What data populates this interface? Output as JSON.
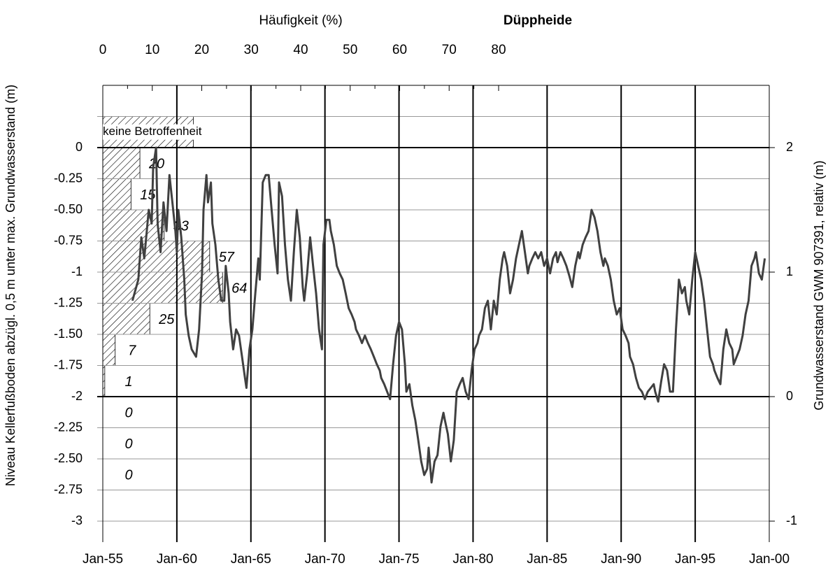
{
  "chart_data": {
    "type": "line",
    "title": "Düppheide",
    "ylabel": "Niveau Kellerfußboden abzügl. 0,5 m unter max. Grundwasserstand (m)",
    "y2label": "Grundwasserstand GWM 907391, relativ (m)",
    "x2label": "Häufigkeit (%)",
    "xlim": [
      1955,
      2000
    ],
    "xticks": [
      {
        "value": 1955,
        "label": "Jan-55"
      },
      {
        "value": 1960,
        "label": "Jan-60"
      },
      {
        "value": 1965,
        "label": "Jan-65"
      },
      {
        "value": 1970,
        "label": "Jan-70"
      },
      {
        "value": 1975,
        "label": "Jan-75"
      },
      {
        "value": 1980,
        "label": "Jan-80"
      },
      {
        "value": 1985,
        "label": "Jan-85"
      },
      {
        "value": 1990,
        "label": "Jan-90"
      },
      {
        "value": 1995,
        "label": "Jan-95"
      },
      {
        "value": 2000,
        "label": "Jan-00"
      }
    ],
    "ylim": [
      -3,
      0.5
    ],
    "yticks": [
      0,
      -0.25,
      {
        "value": -0.5,
        "label": "-0.50"
      },
      -0.75,
      -1,
      -1.25,
      {
        "value": -1.5,
        "label": "-1.50"
      },
      -1.75,
      -2,
      -2.25,
      {
        "value": -2.5,
        "label": "-2.50"
      },
      -2.75,
      -3
    ],
    "emphasized_yticks": [
      0,
      -2
    ],
    "y2lim": [
      -1,
      2.5
    ],
    "y2ticks": [
      2,
      1,
      0,
      -1
    ],
    "x2lim": [
      0,
      80
    ],
    "x2ticks": [
      0,
      10,
      20,
      30,
      40,
      50,
      60,
      70,
      80
    ],
    "histogram": {
      "color": "#000000",
      "bins": [
        0,
        -0.25,
        -0.5,
        -0.75,
        -1,
        -1.25,
        -1.5,
        -1.75,
        -2,
        -2.25,
        -2.5,
        -2.75
      ],
      "values": [
        7.5,
        5.7,
        12.4,
        21.6,
        24.2,
        9.5,
        2.5,
        0.4,
        0,
        0,
        0
      ],
      "counts": [
        20,
        15,
        33,
        57,
        64,
        25,
        7,
        1,
        0,
        0,
        0
      ],
      "extra_bar": {
        "label": "keine Betroffenheit",
        "bins": [
          0.25,
          0
        ],
        "value": 18.3
      }
    },
    "series": [
      {
        "name": "Grundwasserstand GWM 907391",
        "color": "#404040",
        "axis": "y2",
        "x": [
          1957.0,
          1957.4,
          1957.6,
          1957.8,
          1958.1,
          1958.3,
          1958.4,
          1958.6,
          1958.7,
          1958.9,
          1959.1,
          1959.3,
          1959.5,
          1959.7,
          1959.9,
          1960.0,
          1960.1,
          1960.3,
          1960.5,
          1960.6,
          1960.8,
          1961.0,
          1961.3,
          1961.5,
          1961.7,
          1961.8,
          1962.0,
          1962.1,
          1962.3,
          1962.4,
          1962.6,
          1962.8,
          1963.0,
          1963.2,
          1963.3,
          1963.5,
          1963.6,
          1963.8,
          1964.0,
          1964.2,
          1964.4,
          1964.6,
          1964.7,
          1964.9,
          1965.1,
          1965.3,
          1965.5,
          1965.6,
          1965.8,
          1966.0,
          1966.2,
          1966.4,
          1966.6,
          1966.8,
          1966.9,
          1967.1,
          1967.3,
          1967.5,
          1967.7,
          1967.9,
          1968.1,
          1968.3,
          1968.5,
          1968.6,
          1968.8,
          1969.0,
          1969.2,
          1969.4,
          1969.6,
          1969.8,
          1969.9,
          1970.1,
          1970.3,
          1970.4,
          1970.6,
          1970.8,
          1971.0,
          1971.2,
          1971.4,
          1971.6,
          1971.8,
          1972.0,
          1972.1,
          1972.3,
          1972.5,
          1972.7,
          1972.9,
          1973.1,
          1973.3,
          1973.5,
          1973.7,
          1973.8,
          1974.0,
          1974.2,
          1974.4,
          1974.6,
          1974.8,
          1975.0,
          1975.2,
          1975.4,
          1975.5,
          1975.7,
          1975.9,
          1976.1,
          1976.3,
          1976.5,
          1976.7,
          1976.9,
          1977.0,
          1977.2,
          1977.4,
          1977.6,
          1977.8,
          1978.0,
          1978.1,
          1978.3,
          1978.5,
          1978.7,
          1978.9,
          1979.1,
          1979.3,
          1979.5,
          1979.7,
          1979.9,
          1980.1,
          1980.3,
          1980.4,
          1980.6,
          1980.8,
          1981.0,
          1981.2,
          1981.4,
          1981.6,
          1981.8,
          1982.0,
          1982.1,
          1982.3,
          1982.5,
          1982.7,
          1982.9,
          1983.1,
          1983.3,
          1983.5,
          1983.7,
          1983.8,
          1984.0,
          1984.2,
          1984.4,
          1984.6,
          1984.8,
          1985.0,
          1985.2,
          1985.4,
          1985.6,
          1985.7,
          1985.9,
          1986.1,
          1986.3,
          1986.5,
          1986.7,
          1986.9,
          1987.1,
          1987.2,
          1987.4,
          1987.6,
          1987.8,
          1988.0,
          1988.2,
          1988.4,
          1988.6,
          1988.8,
          1988.9,
          1989.1,
          1989.3,
          1989.5,
          1989.7,
          1989.9,
          1990.1,
          1990.3,
          1990.5,
          1990.6,
          1990.8,
          1991.0,
          1991.2,
          1991.4,
          1991.6,
          1991.8,
          1992.0,
          1992.2,
          1992.3,
          1992.5,
          1992.7,
          1992.9,
          1993.1,
          1993.3,
          1993.5,
          1993.7,
          1993.9,
          1994.1,
          1994.3,
          1994.4,
          1994.6,
          1994.8,
          1995.0,
          1995.2,
          1995.4,
          1995.6,
          1995.8,
          1996.0,
          1996.2,
          1996.3,
          1996.5,
          1996.7,
          1996.9,
          1997.1,
          1997.3,
          1997.5,
          1997.6,
          1997.8,
          1998.0,
          1998.2,
          1998.4,
          1998.6,
          1998.8,
          1999.0,
          1999.1,
          1999.3,
          1999.5,
          1999.7
        ],
        "values": [
          0.77,
          0.94,
          1.28,
          1.11,
          1.5,
          1.39,
          1.84,
          2.0,
          1.39,
          1.16,
          1.56,
          1.33,
          1.78,
          1.56,
          1.33,
          1.16,
          1.5,
          1.28,
          0.94,
          0.66,
          0.49,
          0.38,
          0.32,
          0.54,
          0.99,
          1.5,
          1.78,
          1.56,
          1.72,
          1.39,
          1.22,
          0.94,
          0.77,
          0.77,
          1.05,
          0.83,
          0.6,
          0.38,
          0.54,
          0.49,
          0.32,
          0.15,
          0.07,
          0.38,
          0.54,
          0.83,
          1.11,
          0.94,
          1.72,
          1.78,
          1.78,
          1.5,
          1.22,
          0.99,
          1.72,
          1.61,
          1.22,
          0.94,
          0.77,
          1.16,
          1.5,
          1.28,
          0.88,
          0.77,
          0.99,
          1.28,
          1.05,
          0.83,
          0.54,
          0.38,
          1.22,
          1.42,
          1.42,
          1.33,
          1.22,
          1.05,
          0.99,
          0.94,
          0.83,
          0.71,
          0.66,
          0.6,
          0.54,
          0.49,
          0.43,
          0.49,
          0.43,
          0.38,
          0.32,
          0.26,
          0.21,
          0.15,
          0.1,
          0.04,
          -0.02,
          0.26,
          0.49,
          0.6,
          0.54,
          0.26,
          0.04,
          0.1,
          -0.07,
          -0.19,
          -0.35,
          -0.52,
          -0.63,
          -0.58,
          -0.41,
          -0.69,
          -0.52,
          -0.47,
          -0.24,
          -0.13,
          -0.19,
          -0.3,
          -0.52,
          -0.35,
          0.04,
          0.1,
          0.15,
          0.04,
          -0.02,
          0.21,
          0.38,
          0.43,
          0.49,
          0.54,
          0.71,
          0.77,
          0.54,
          0.77,
          0.66,
          0.94,
          1.11,
          1.16,
          1.05,
          0.83,
          0.94,
          1.11,
          1.22,
          1.33,
          1.16,
          0.99,
          1.05,
          1.11,
          1.16,
          1.11,
          1.16,
          1.05,
          1.11,
          0.99,
          1.11,
          1.16,
          1.08,
          1.16,
          1.11,
          1.05,
          0.97,
          0.88,
          1.05,
          1.16,
          1.11,
          1.22,
          1.28,
          1.33,
          1.5,
          1.44,
          1.33,
          1.16,
          1.05,
          1.11,
          1.05,
          0.94,
          0.77,
          0.66,
          0.71,
          0.54,
          0.49,
          0.43,
          0.32,
          0.26,
          0.15,
          0.07,
          0.04,
          -0.02,
          0.04,
          0.07,
          0.1,
          0.04,
          -0.04,
          0.12,
          0.26,
          0.21,
          0.04,
          0.04,
          0.54,
          0.94,
          0.83,
          0.88,
          0.77,
          0.66,
          0.94,
          1.16,
          1.05,
          0.94,
          0.77,
          0.54,
          0.32,
          0.26,
          0.21,
          0.15,
          0.1,
          0.38,
          0.54,
          0.43,
          0.38,
          0.26,
          0.32,
          0.38,
          0.49,
          0.66,
          0.77,
          1.05,
          1.11,
          1.16,
          0.99,
          0.94,
          1.11
        ]
      }
    ]
  }
}
